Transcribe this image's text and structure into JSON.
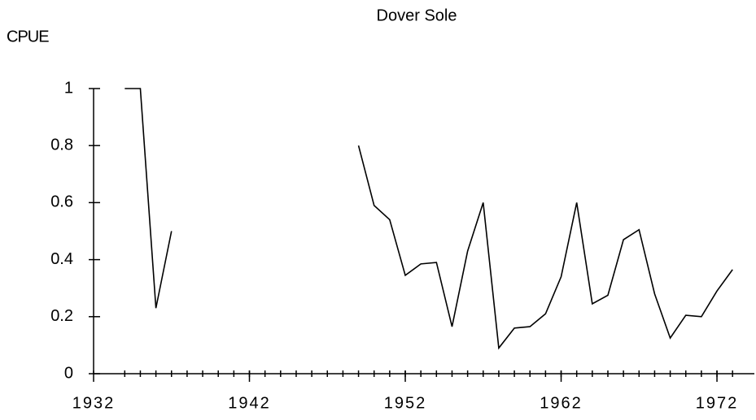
{
  "chart_data": {
    "type": "line",
    "title": "Dover Sole",
    "y_label": "CPUE",
    "x": [
      1934,
      1935,
      1936,
      1937,
      1938,
      1939,
      1940,
      1941,
      1942,
      1943,
      1944,
      1945,
      1946,
      1947,
      1948,
      1949,
      1950,
      1951,
      1952,
      1953,
      1954,
      1955,
      1956,
      1957,
      1958,
      1959,
      1960,
      1961,
      1962,
      1963,
      1964,
      1965,
      1966,
      1967,
      1968,
      1969,
      1970,
      1971,
      1972,
      1973
    ],
    "values": [
      1,
      1,
      0.23,
      0.5,
      null,
      null,
      null,
      null,
      null,
      null,
      null,
      null,
      null,
      null,
      null,
      0.8,
      0.59,
      0.54,
      0.345,
      0.385,
      0.39,
      0.165,
      0.43,
      0.6,
      0.09,
      0.16,
      0.165,
      0.21,
      0.34,
      0.6,
      0.245,
      0.275,
      0.47,
      0.505,
      0.28,
      0.125,
      0.205,
      0.2,
      0.29,
      0.365
    ],
    "color": "#000000",
    "xlim": [
      1932,
      1974.4
    ],
    "xticks": [
      1932,
      1942,
      1952,
      1962,
      1972
    ],
    "ylim": [
      0,
      1
    ],
    "yticks": [
      0,
      0.2,
      0.4,
      0.6,
      0.8,
      1
    ],
    "grid": false
  }
}
